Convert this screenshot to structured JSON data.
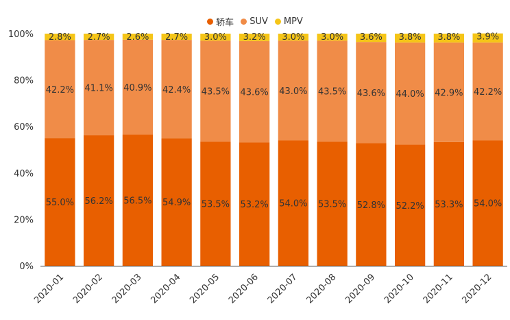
{
  "chart_data": {
    "type": "bar",
    "stacked": true,
    "percent": true,
    "categories": [
      "2020-01",
      "2020-02",
      "2020-03",
      "2020-04",
      "2020-05",
      "2020-06",
      "2020-07",
      "2020-08",
      "2020-09",
      "2020-10",
      "2020-11",
      "2020-12"
    ],
    "series": [
      {
        "name": "轿车",
        "color": "#e85f00",
        "values": [
          55.0,
          56.2,
          56.5,
          54.9,
          53.5,
          53.2,
          54.0,
          53.5,
          52.8,
          52.2,
          53.3,
          54.0
        ]
      },
      {
        "name": "SUV",
        "color": "#f08c48",
        "values": [
          42.2,
          41.1,
          40.9,
          42.4,
          43.5,
          43.6,
          43.0,
          43.5,
          43.6,
          44.0,
          42.9,
          42.2
        ]
      },
      {
        "name": "MPV",
        "color": "#f5c518",
        "values": [
          2.8,
          2.7,
          2.6,
          2.7,
          3.0,
          3.2,
          3.0,
          3.0,
          3.6,
          3.8,
          3.8,
          3.9
        ]
      }
    ],
    "ylim": [
      0,
      100
    ],
    "yticks": [
      "0%",
      "20%",
      "40%",
      "60%",
      "80%",
      "100%"
    ],
    "legend_position": "top-center",
    "grid": false,
    "xlabel": "",
    "ylabel": "",
    "title": ""
  }
}
